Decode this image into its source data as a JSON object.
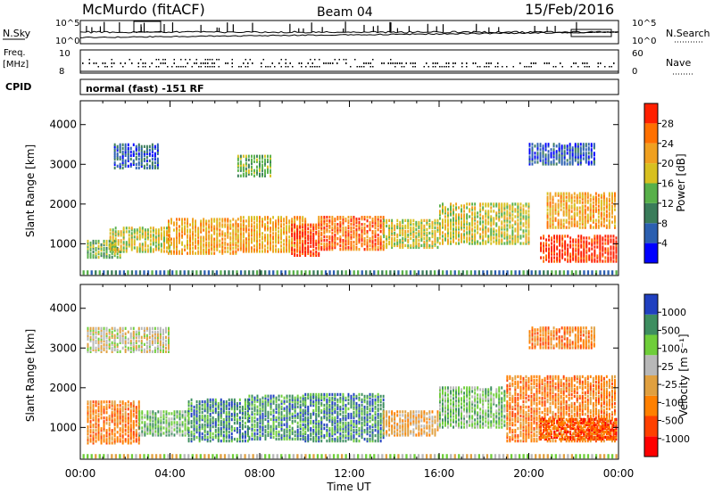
{
  "header": {
    "station": "McMurdo (fitACF)",
    "beam": "Beam 04",
    "date": "15/Feb/2016"
  },
  "status_panel": {
    "left_top_label": "N.Sky",
    "left_mid_label_1": "Freq.",
    "left_mid_label_2": "[MHz]",
    "left_bottom_label": "CPID",
    "right_top_label": "N.Search",
    "right_mid_label": "Nave",
    "noise_axis_left_top": "10^5",
    "noise_axis_left_bottom": "10^0",
    "noise_axis_right_top": "10^5",
    "noise_axis_right_bottom": "10^0",
    "freq_axis_top": "10",
    "freq_axis_bottom": "8",
    "nave_axis_top": "60",
    "nave_axis_bottom": "0",
    "cpid_text": "normal (fast) -151 RF"
  },
  "colors": {
    "power": [
      "#0000ff",
      "#2b5fb0",
      "#3a7c5a",
      "#58b04a",
      "#d8c020",
      "#f0a020",
      "#ff7000",
      "#ff2000"
    ],
    "velocity": [
      "#ff0000",
      "#ff4000",
      "#ff8000",
      "#e0a040",
      "#b8b8b8",
      "#6fce3a",
      "#3e8e60",
      "#2040c0"
    ]
  },
  "chart_data": [
    {
      "type": "heatmap",
      "name": "power",
      "ylabel": "Slant Range [km]",
      "yticks": [
        "1000",
        "2000",
        "3000",
        "4000"
      ],
      "xticks": [
        "00:00",
        "04:00",
        "08:00",
        "12:00",
        "16:00",
        "20:00",
        "00:00"
      ],
      "colorbar_label": "Power [dB]",
      "colorbar_ticks": [
        "4",
        "8",
        "12",
        "16",
        "20",
        "24",
        "28"
      ],
      "ylim": [
        200,
        4600
      ],
      "xlim_hours": [
        0,
        24
      ],
      "patches": [
        {
          "t0": 0.3,
          "t1": 1.8,
          "r0": 650,
          "r1": 1100,
          "level": 3
        },
        {
          "t0": 1.3,
          "t1": 4.0,
          "r0": 800,
          "r1": 1400,
          "level": 4
        },
        {
          "t0": 3.9,
          "t1": 7.0,
          "r0": 750,
          "r1": 1650,
          "level": 5
        },
        {
          "t0": 7.0,
          "t1": 10.0,
          "r0": 800,
          "r1": 1700,
          "level": 5
        },
        {
          "t0": 9.4,
          "t1": 10.6,
          "r0": 700,
          "r1": 1500,
          "level": 7
        },
        {
          "t0": 10.6,
          "t1": 13.5,
          "r0": 850,
          "r1": 1700,
          "level": 6
        },
        {
          "t0": 13.5,
          "t1": 16.0,
          "r0": 900,
          "r1": 1600,
          "level": 4
        },
        {
          "t0": 16.0,
          "t1": 20.0,
          "r0": 1000,
          "r1": 2000,
          "level": 4
        },
        {
          "t0": 20.5,
          "t1": 23.9,
          "r0": 550,
          "r1": 1200,
          "level": 7
        },
        {
          "t0": 20.8,
          "t1": 23.9,
          "r0": 1400,
          "r1": 2300,
          "level": 5
        },
        {
          "t0": 1.5,
          "t1": 3.5,
          "r0": 2900,
          "r1": 3500,
          "level": 1
        },
        {
          "t0": 7.0,
          "t1": 8.5,
          "r0": 2700,
          "r1": 3200,
          "level": 3
        },
        {
          "t0": 20.0,
          "t1": 23.0,
          "r0": 3000,
          "r1": 3500,
          "level": 1
        }
      ]
    },
    {
      "type": "heatmap",
      "name": "velocity",
      "ylabel": "Slant Range [km]",
      "yticks": [
        "1000",
        "2000",
        "3000",
        "4000"
      ],
      "xticks": [
        "00:00",
        "04:00",
        "08:00",
        "12:00",
        "16:00",
        "20:00",
        "00:00"
      ],
      "xlabel": "Time UT",
      "colorbar_label": "Velocity [m s⁻¹]",
      "colorbar_ticks": [
        "-1000",
        "-500",
        "-100",
        "-25",
        "25",
        "100",
        "500",
        "1000"
      ],
      "ylim": [
        200,
        4600
      ],
      "xlim_hours": [
        0,
        24
      ],
      "patches": [
        {
          "t0": 0.3,
          "t1": 2.6,
          "r0": 600,
          "r1": 1650,
          "level": 2
        },
        {
          "t0": 2.6,
          "t1": 4.8,
          "r0": 800,
          "r1": 1400,
          "level": 5
        },
        {
          "t0": 4.8,
          "t1": 7.5,
          "r0": 650,
          "r1": 1700,
          "level": 6
        },
        {
          "t0": 7.5,
          "t1": 10.0,
          "r0": 700,
          "r1": 1800,
          "level": 6
        },
        {
          "t0": 10.0,
          "t1": 13.5,
          "r0": 650,
          "r1": 1850,
          "level": 6
        },
        {
          "t0": 13.5,
          "t1": 16.0,
          "r0": 800,
          "r1": 1400,
          "level": 3
        },
        {
          "t0": 16.0,
          "t1": 19.0,
          "r0": 1000,
          "r1": 2000,
          "level": 5
        },
        {
          "t0": 19.0,
          "t1": 23.9,
          "r0": 650,
          "r1": 2300,
          "level": 2
        },
        {
          "t0": 20.5,
          "t1": 23.9,
          "r0": 700,
          "r1": 1200,
          "level": 1
        },
        {
          "t0": 0.3,
          "t1": 4.0,
          "r0": 2900,
          "r1": 3500,
          "level": 4
        },
        {
          "t0": 20.0,
          "t1": 23.0,
          "r0": 3000,
          "r1": 3500,
          "level": 2
        }
      ]
    }
  ]
}
